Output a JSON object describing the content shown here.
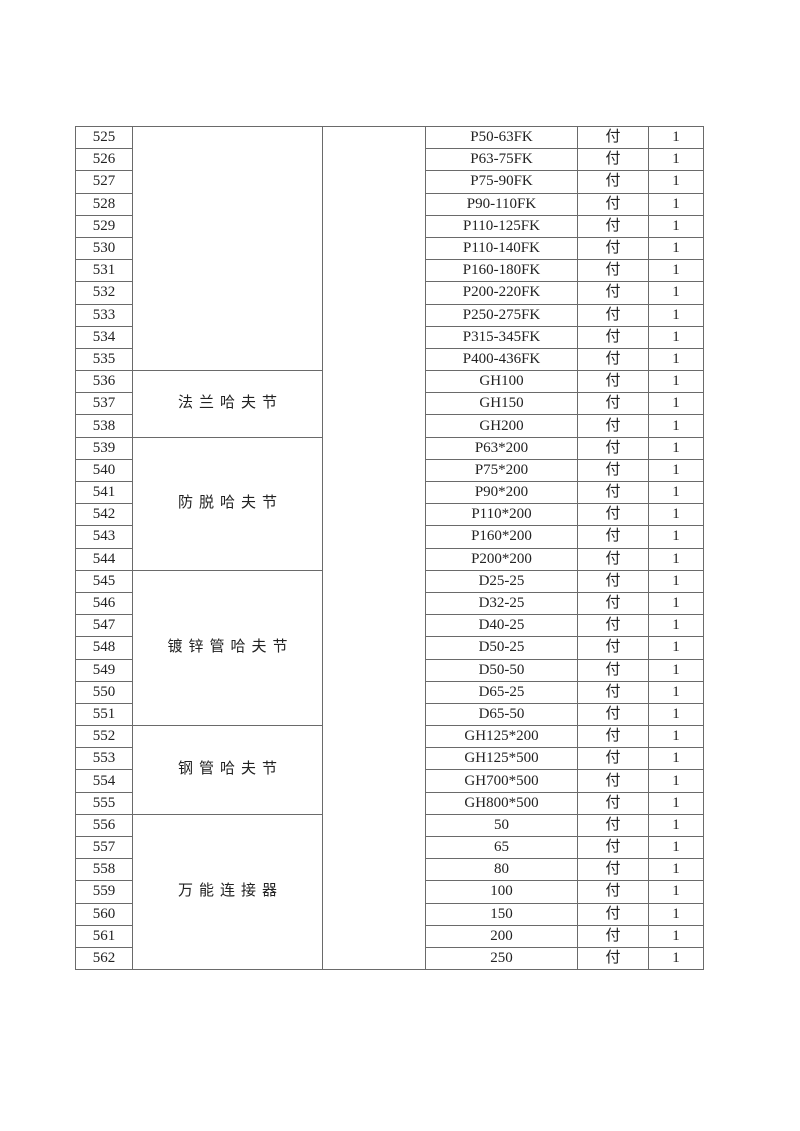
{
  "page": {
    "background_color": "#ffffff"
  },
  "table": {
    "border_color": "#6a6a6a",
    "text_color": "#222222",
    "blank_column_text": "",
    "groups": [
      {
        "category": "",
        "rows": [
          {
            "no": "525",
            "spec": "P50-63FK",
            "unit": "付",
            "qty": "1"
          },
          {
            "no": "526",
            "spec": "P63-75FK",
            "unit": "付",
            "qty": "1"
          },
          {
            "no": "527",
            "spec": "P75-90FK",
            "unit": "付",
            "qty": "1"
          },
          {
            "no": "528",
            "spec": "P90-110FK",
            "unit": "付",
            "qty": "1"
          },
          {
            "no": "529",
            "spec": "P110-125FK",
            "unit": "付",
            "qty": "1"
          },
          {
            "no": "530",
            "spec": "P110-140FK",
            "unit": "付",
            "qty": "1"
          },
          {
            "no": "531",
            "spec": "P160-180FK",
            "unit": "付",
            "qty": "1"
          },
          {
            "no": "532",
            "spec": "P200-220FK",
            "unit": "付",
            "qty": "1"
          },
          {
            "no": "533",
            "spec": "P250-275FK",
            "unit": "付",
            "qty": "1"
          },
          {
            "no": "534",
            "spec": "P315-345FK",
            "unit": "付",
            "qty": "1"
          },
          {
            "no": "535",
            "spec": "P400-436FK",
            "unit": "付",
            "qty": "1"
          }
        ]
      },
      {
        "category": "法兰哈夫节",
        "rows": [
          {
            "no": "536",
            "spec": "GH100",
            "unit": "付",
            "qty": "1"
          },
          {
            "no": "537",
            "spec": "GH150",
            "unit": "付",
            "qty": "1"
          },
          {
            "no": "538",
            "spec": "GH200",
            "unit": "付",
            "qty": "1"
          }
        ]
      },
      {
        "category": "防脱哈夫节",
        "rows": [
          {
            "no": "539",
            "spec": "P63*200",
            "unit": "付",
            "qty": "1"
          },
          {
            "no": "540",
            "spec": "P75*200",
            "unit": "付",
            "qty": "1"
          },
          {
            "no": "541",
            "spec": "P90*200",
            "unit": "付",
            "qty": "1"
          },
          {
            "no": "542",
            "spec": "P110*200",
            "unit": "付",
            "qty": "1"
          },
          {
            "no": "543",
            "spec": "P160*200",
            "unit": "付",
            "qty": "1"
          },
          {
            "no": "544",
            "spec": "P200*200",
            "unit": "付",
            "qty": "1"
          }
        ]
      },
      {
        "category": "镀锌管哈夫节",
        "rows": [
          {
            "no": "545",
            "spec": "D25-25",
            "unit": "付",
            "qty": "1"
          },
          {
            "no": "546",
            "spec": "D32-25",
            "unit": "付",
            "qty": "1"
          },
          {
            "no": "547",
            "spec": "D40-25",
            "unit": "付",
            "qty": "1"
          },
          {
            "no": "548",
            "spec": "D50-25",
            "unit": "付",
            "qty": "1"
          },
          {
            "no": "549",
            "spec": "D50-50",
            "unit": "付",
            "qty": "1"
          },
          {
            "no": "550",
            "spec": "D65-25",
            "unit": "付",
            "qty": "1"
          },
          {
            "no": "551",
            "spec": "D65-50",
            "unit": "付",
            "qty": "1"
          }
        ]
      },
      {
        "category": "钢管哈夫节",
        "rows": [
          {
            "no": "552",
            "spec": "GH125*200",
            "unit": "付",
            "qty": "1"
          },
          {
            "no": "553",
            "spec": "GH125*500",
            "unit": "付",
            "qty": "1"
          },
          {
            "no": "554",
            "spec": "GH700*500",
            "unit": "付",
            "qty": "1"
          },
          {
            "no": "555",
            "spec": "GH800*500",
            "unit": "付",
            "qty": "1"
          }
        ]
      },
      {
        "category": "万能连接器",
        "rows": [
          {
            "no": "556",
            "spec": "50",
            "unit": "付",
            "qty": "1"
          },
          {
            "no": "557",
            "spec": "65",
            "unit": "付",
            "qty": "1"
          },
          {
            "no": "558",
            "spec": "80",
            "unit": "付",
            "qty": "1"
          },
          {
            "no": "559",
            "spec": "100",
            "unit": "付",
            "qty": "1"
          },
          {
            "no": "560",
            "spec": "150",
            "unit": "付",
            "qty": "1"
          },
          {
            "no": "561",
            "spec": "200",
            "unit": "付",
            "qty": "1"
          },
          {
            "no": "562",
            "spec": "250",
            "unit": "付",
            "qty": "1"
          }
        ]
      }
    ]
  }
}
